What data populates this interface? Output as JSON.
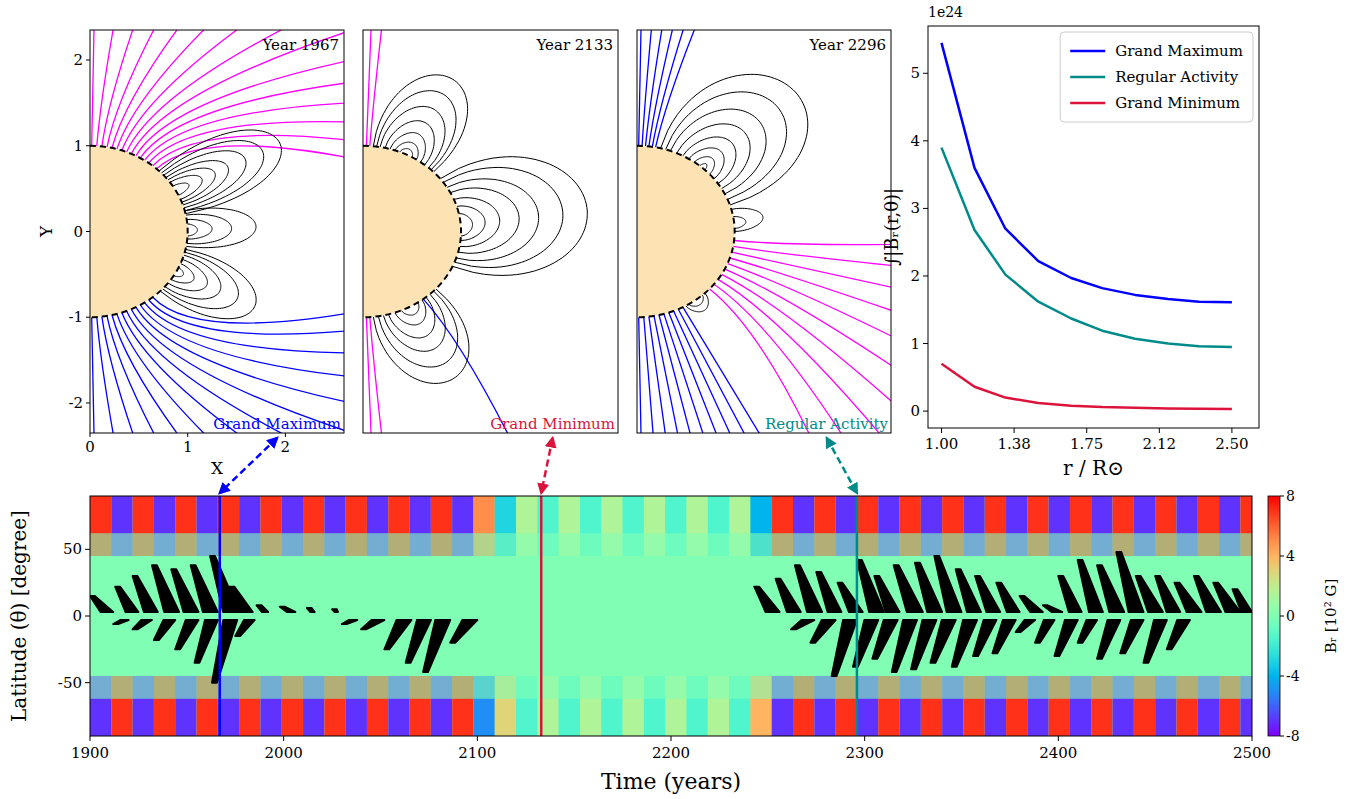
{
  "chart_data": [
    {
      "type": "field_lines",
      "title": "Year 1967",
      "year": 1967,
      "label": "Grand Maximum",
      "color": "#0000ff",
      "x_label": "X",
      "y_label": "Y",
      "xlim": [
        0,
        2.6
      ],
      "ylim": [
        -2.35,
        2.35
      ],
      "xticks": [
        0,
        1,
        2
      ],
      "yticks": [
        -2,
        -1,
        0,
        1,
        2
      ],
      "open_lines": [
        {
          "color": "#ff00ff",
          "lats": [
            89,
            86,
            83,
            80,
            77,
            74,
            71,
            68,
            65,
            62,
            59,
            56,
            53,
            50,
            47
          ],
          "angles": [
            89,
            83,
            77,
            71,
            65,
            59,
            53,
            47,
            41,
            35,
            30,
            25,
            20,
            15,
            10
          ]
        },
        {
          "color": "#0000ff",
          "lats": [
            -89,
            -86,
            -83,
            -80,
            -77,
            -74,
            -71,
            -68,
            -65,
            -62,
            -59,
            -56,
            -53,
            -50
          ],
          "angles": [
            -89,
            -83,
            -77,
            -71,
            -65,
            -59,
            -53,
            -47,
            -41,
            -35,
            -29,
            -23,
            -17,
            -12
          ]
        }
      ],
      "loops": [
        [
          45,
          12,
          2.2
        ],
        [
          43,
          14,
          2.0
        ],
        [
          41,
          16,
          1.8
        ],
        [
          39,
          18,
          1.6
        ],
        [
          37,
          20,
          1.45
        ],
        [
          35,
          22,
          1.3
        ],
        [
          32,
          25,
          1.15
        ],
        [
          14,
          -10,
          1.7
        ],
        [
          11,
          -8,
          1.45
        ],
        [
          8,
          -5,
          1.25
        ],
        [
          5,
          -3,
          1.1
        ],
        [
          -12,
          -44,
          1.9
        ],
        [
          -14,
          -42,
          1.7
        ],
        [
          -16,
          -40,
          1.5
        ],
        [
          -19,
          -37,
          1.35
        ],
        [
          -22,
          -34,
          1.2
        ],
        [
          -25,
          -31,
          1.08
        ]
      ]
    },
    {
      "type": "field_lines",
      "title": "Year 2133",
      "year": 2133,
      "label": "Grand Minimum",
      "color": "#dc143c",
      "xlim": [
        0,
        2.6
      ],
      "ylim": [
        -2.35,
        2.35
      ],
      "tick_labels": false,
      "open_lines": [
        {
          "color": "#ff00ff",
          "lats": [
            88,
            86,
            -88,
            -86
          ],
          "angles": [
            88,
            85,
            -88,
            -85
          ]
        },
        {
          "color": "#0000ff",
          "lats": [
            -52
          ],
          "angles": [
            -60
          ]
        }
      ],
      "loops": [
        [
          84,
          44,
          2.0
        ],
        [
          82,
          46,
          1.8
        ],
        [
          80,
          48,
          1.6
        ],
        [
          77,
          51,
          1.42
        ],
        [
          74,
          54,
          1.27
        ],
        [
          71,
          57,
          1.15
        ],
        [
          68,
          60,
          1.07
        ],
        [
          38,
          -24,
          2.3
        ],
        [
          35,
          -21,
          2.05
        ],
        [
          31,
          -18,
          1.8
        ],
        [
          27,
          -14,
          1.6
        ],
        [
          22,
          -10,
          1.4
        ],
        [
          17,
          -6,
          1.25
        ],
        [
          12,
          -3,
          1.12
        ],
        [
          -42,
          -84,
          1.95
        ],
        [
          -44,
          -81,
          1.75
        ],
        [
          -47,
          -78,
          1.55
        ],
        [
          -50,
          -75,
          1.38
        ],
        [
          -53,
          -71,
          1.22
        ],
        [
          -56,
          -67,
          1.1
        ]
      ]
    },
    {
      "type": "field_lines",
      "title": "Year 2296",
      "year": 2296,
      "label": "Regular Activity",
      "color": "#008b8b",
      "xlim": [
        0,
        2.6
      ],
      "ylim": [
        -2.35,
        2.35
      ],
      "tick_labels": false,
      "open_lines": [
        {
          "color": "#0000ff",
          "lats": [
            89,
            87,
            85,
            83,
            81,
            79
          ],
          "angles": [
            89,
            86,
            83,
            80,
            77,
            74
          ]
        },
        {
          "color": "#ff00ff",
          "lats": [
            -6,
            -10,
            -14,
            -18,
            -22,
            -26,
            -30,
            -34,
            -38,
            -42
          ],
          "angles": [
            -2,
            -8,
            -14,
            -20,
            -26,
            -32,
            -38,
            -44,
            -50,
            -56
          ]
        },
        {
          "color": "#0000ff",
          "lats": [
            -89,
            -86,
            -83,
            -80,
            -77,
            -74,
            -71,
            -68,
            -65,
            -62
          ],
          "angles": [
            -89,
            -86,
            -83,
            -80,
            -77,
            -74,
            -71,
            -68,
            -65,
            -62
          ]
        }
      ],
      "loops": [
        [
          76,
          18,
          2.3
        ],
        [
          73,
          22,
          2.05
        ],
        [
          70,
          26,
          1.8
        ],
        [
          66,
          30,
          1.6
        ],
        [
          62,
          34,
          1.42
        ],
        [
          58,
          38,
          1.27
        ],
        [
          54,
          42,
          1.15
        ],
        [
          50,
          46,
          1.06
        ],
        [
          15,
          0,
          1.3
        ],
        [
          10,
          2,
          1.12
        ],
        [
          -46,
          -60,
          1.15
        ],
        [
          -48,
          -58,
          1.07
        ]
      ]
    },
    {
      "type": "line",
      "x_label": "r / R⊙",
      "y_label": "∫|Bᵣ(r,θ)|",
      "y_multiplier_label": "1e24",
      "xlim": [
        0.93,
        2.64
      ],
      "ylim": [
        -0.25,
        5.7
      ],
      "xticks": [
        {
          "value": 1,
          "label": "1.00"
        },
        {
          "value": 1.375,
          "label": "1.38"
        },
        {
          "value": 1.75,
          "label": "1.75"
        },
        {
          "value": 2.125,
          "label": "2.12"
        },
        {
          "value": 2.5,
          "label": "2.50"
        }
      ],
      "yticks": [
        0,
        1,
        2,
        3,
        4,
        5
      ],
      "legend": "upper right",
      "x": [
        1.0,
        1.17,
        1.33,
        1.5,
        1.67,
        1.83,
        2.0,
        2.17,
        2.33,
        2.5
      ],
      "series": [
        {
          "name": "Grand Maximum",
          "color": "#0000ff",
          "values": [
            5.45,
            3.6,
            2.7,
            2.22,
            1.97,
            1.82,
            1.72,
            1.66,
            1.62,
            1.61
          ]
        },
        {
          "name": "Regular Activity",
          "color": "#008b8b",
          "values": [
            3.9,
            2.68,
            2.02,
            1.62,
            1.37,
            1.19,
            1.07,
            1.0,
            0.96,
            0.95
          ]
        },
        {
          "name": "Grand Minimum",
          "color": "#dc143c",
          "values": [
            0.7,
            0.36,
            0.2,
            0.12,
            0.08,
            0.06,
            0.05,
            0.04,
            0.035,
            0.03
          ]
        }
      ]
    },
    {
      "type": "heatmap",
      "x_label": "Time (years)",
      "y_label": "Latitude (θ) [degree]",
      "xlim": [
        1900,
        2500
      ],
      "ylim": [
        -90,
        90
      ],
      "xticks": [
        1900,
        2000,
        2100,
        2200,
        2300,
        2400,
        2500
      ],
      "yticks": [
        -50,
        0,
        50
      ],
      "colorbar": {
        "label": "Bᵣ [10² G]",
        "range": [
          -8,
          8
        ],
        "ticks": [
          -8,
          -4,
          0,
          4,
          8
        ]
      },
      "background_value": 0,
      "polar_field": {
        "times": [
          1900,
          1911,
          1922,
          1933,
          1944,
          1955,
          1966,
          1977,
          1988,
          1999,
          2010,
          2021,
          2032,
          2043,
          2054,
          2065,
          2076,
          2087,
          2098,
          2109,
          2120,
          2131,
          2142,
          2153,
          2164,
          2175,
          2186,
          2197,
          2208,
          2219,
          2230,
          2241,
          2252,
          2263,
          2274,
          2285,
          2296,
          2307,
          2318,
          2329,
          2340,
          2351,
          2362,
          2373,
          2384,
          2395,
          2406,
          2417,
          2428,
          2439,
          2450,
          2461,
          2472,
          2483,
          2494
        ],
        "north": [
          7,
          -7,
          7,
          -7,
          7,
          -7,
          7,
          -7,
          7,
          -7,
          7,
          -7,
          7,
          -7,
          7,
          -7,
          7,
          -7,
          5,
          -3,
          1.5,
          -1.5,
          1.5,
          -1.5,
          1.5,
          -1.5,
          1.5,
          -1.5,
          1.5,
          -1.5,
          1.5,
          -4,
          7,
          -7,
          7,
          -7,
          7,
          -7,
          7,
          -7,
          7,
          -7,
          7,
          -7,
          7,
          -7,
          7,
          -7,
          7,
          -7,
          7,
          -7,
          7,
          -7,
          7
        ],
        "south": [
          -7,
          7,
          -7,
          7,
          -7,
          7,
          -7,
          7,
          -7,
          7,
          -7,
          7,
          -7,
          7,
          -7,
          7,
          -7,
          7,
          -5,
          3,
          -1.5,
          1.5,
          -1.5,
          1.5,
          -1.5,
          1.5,
          -1.5,
          1.5,
          -1.5,
          1.5,
          -1.5,
          4,
          -7,
          7,
          -7,
          7,
          -7,
          7,
          -7,
          7,
          -7,
          7,
          -7,
          7,
          -7,
          7,
          -7,
          7,
          -7,
          7,
          -7,
          7,
          -7,
          7,
          -7
        ]
      },
      "sunspot_wings": [
        [
          1900,
          1912,
          15
        ],
        [
          1913,
          1925,
          22
        ],
        [
          1922,
          1935,
          30
        ],
        [
          1932,
          1946,
          38
        ],
        [
          1942,
          1956,
          35
        ],
        [
          1952,
          1966,
          38
        ],
        [
          1962,
          1977,
          45
        ],
        [
          1972,
          1984,
          22
        ],
        [
          1986,
          1992,
          8
        ],
        [
          1998,
          2006,
          7
        ],
        [
          2012,
          2016,
          6
        ],
        [
          2025,
          2028,
          5
        ],
        [
          1912,
          1920,
          -6
        ],
        [
          1922,
          1932,
          -10
        ],
        [
          1933,
          1944,
          -18
        ],
        [
          1944,
          1956,
          -25
        ],
        [
          1954,
          1966,
          -35
        ],
        [
          1963,
          1976,
          -50
        ],
        [
          1975,
          1985,
          -15
        ],
        [
          2030,
          2038,
          -6
        ],
        [
          2040,
          2052,
          -10
        ],
        [
          2052,
          2066,
          -25
        ],
        [
          2063,
          2076,
          -35
        ],
        [
          2072,
          2086,
          -42
        ],
        [
          2086,
          2100,
          -20
        ],
        [
          2243,
          2256,
          22
        ],
        [
          2254,
          2267,
          28
        ],
        [
          2264,
          2278,
          38
        ],
        [
          2275,
          2288,
          33
        ],
        [
          2286,
          2299,
          25
        ],
        [
          2296,
          2310,
          42
        ],
        [
          2305,
          2318,
          30
        ],
        [
          2315,
          2330,
          38
        ],
        [
          2326,
          2340,
          40
        ],
        [
          2336,
          2350,
          45
        ],
        [
          2347,
          2360,
          35
        ],
        [
          2357,
          2370,
          30
        ],
        [
          2368,
          2380,
          25
        ],
        [
          2380,
          2392,
          15
        ],
        [
          2392,
          2402,
          8
        ],
        [
          2400,
          2412,
          30
        ],
        [
          2410,
          2423,
          42
        ],
        [
          2420,
          2434,
          38
        ],
        [
          2430,
          2444,
          48
        ],
        [
          2440,
          2454,
          30
        ],
        [
          2450,
          2463,
          30
        ],
        [
          2460,
          2474,
          25
        ],
        [
          2470,
          2484,
          30
        ],
        [
          2480,
          2494,
          25
        ],
        [
          2490,
          2500,
          20
        ],
        [
          2262,
          2274,
          -10
        ],
        [
          2272,
          2285,
          -20
        ],
        [
          2283,
          2296,
          -45
        ],
        [
          2294,
          2307,
          -38
        ],
        [
          2304,
          2317,
          -32
        ],
        [
          2314,
          2327,
          -42
        ],
        [
          2324,
          2337,
          -40
        ],
        [
          2334,
          2347,
          -35
        ],
        [
          2345,
          2358,
          -38
        ],
        [
          2356,
          2368,
          -30
        ],
        [
          2366,
          2378,
          -28
        ],
        [
          2378,
          2388,
          -12
        ],
        [
          2388,
          2398,
          -20
        ],
        [
          2398,
          2410,
          -30
        ],
        [
          2410,
          2420,
          -20
        ],
        [
          2420,
          2432,
          -32
        ],
        [
          2432,
          2444,
          -28
        ],
        [
          2444,
          2456,
          -35
        ],
        [
          2456,
          2468,
          -25
        ]
      ]
    }
  ]
}
